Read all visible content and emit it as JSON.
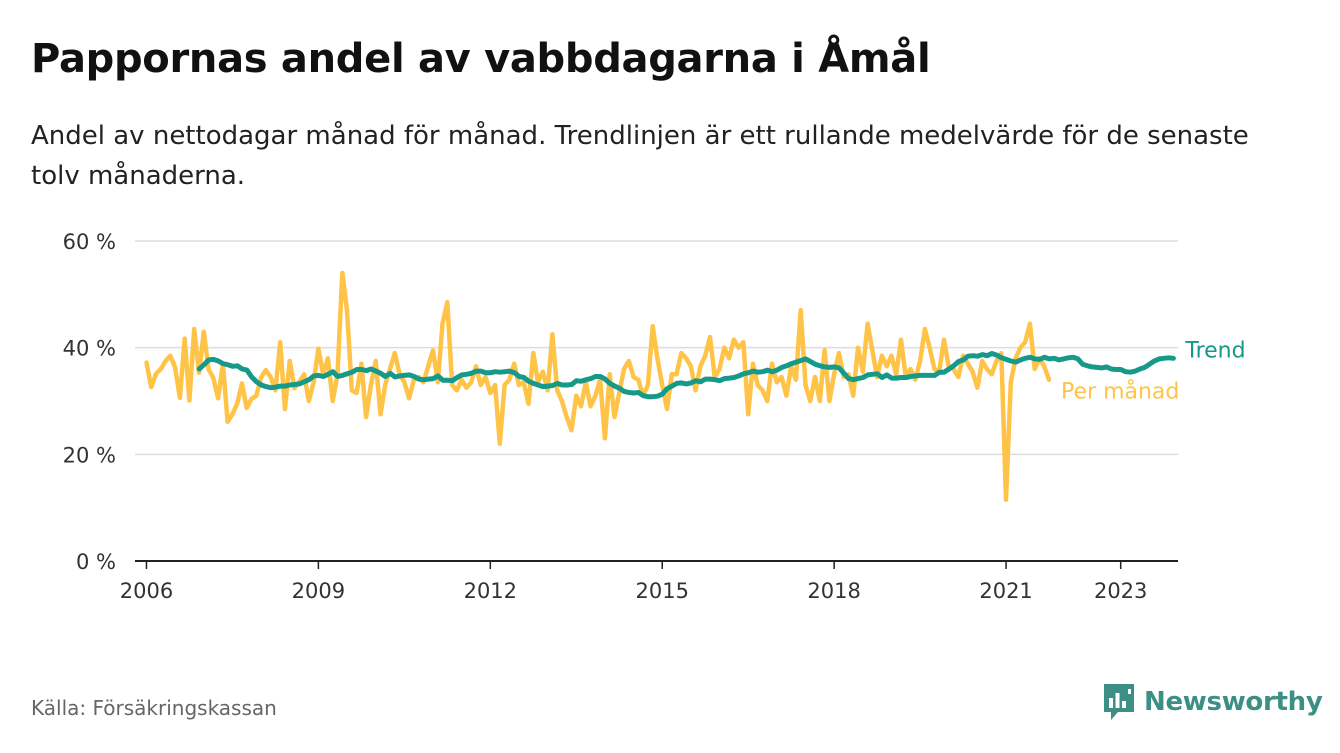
{
  "header": {
    "title": "Pappornas andel av vabbdagarna i Åmål",
    "subtitle": "Andel av nettodagar månad för månad. Trendlinjen är ett rullande medelvärde för de senaste tolv månaderna."
  },
  "footer": {
    "source": "Källa: Försäkringskassan",
    "brand": "Newsworthy",
    "brand_icon": "bar-chart-speech-bubble-icon"
  },
  "chart_data": {
    "type": "line",
    "title": "Pappornas andel av vabbdagarna i Åmål",
    "xlabel": "",
    "ylabel": "",
    "xlim": [
      2005.8,
      2024.0
    ],
    "ylim": [
      0,
      60
    ],
    "y_unit": "%",
    "y_ticks": [
      0,
      20,
      40,
      60
    ],
    "y_tick_labels": [
      "0 %",
      "20 %",
      "40 %",
      "60 %"
    ],
    "x_ticks": [
      2006,
      2009,
      2012,
      2015,
      2018,
      2021,
      2023
    ],
    "x_tick_labels": [
      "2006",
      "2009",
      "2012",
      "2015",
      "2018",
      "2021",
      "2023"
    ],
    "grid": true,
    "legend": "direct labels at right end of lines",
    "x_start": 2006.0,
    "x_step": 0.08333,
    "series": [
      {
        "name": "Per månad",
        "color": "#ffc347",
        "values": [
          37.2,
          32.6,
          35.1,
          36.0,
          37.5,
          38.5,
          36.3,
          30.6,
          41.7,
          30.1,
          43.5,
          35.3,
          43.0,
          36.0,
          34.3,
          30.5,
          37.0,
          26.1,
          27.5,
          29.5,
          33.3,
          28.7,
          30.4,
          31.0,
          34.4,
          35.8,
          34.5,
          32.0,
          41.0,
          28.5,
          37.5,
          32.4,
          33.6,
          35.0,
          30.0,
          33.5,
          39.8,
          35.0,
          38.0,
          30.0,
          35.0,
          54.0,
          47.0,
          32.0,
          31.5,
          37.0,
          27.0,
          33.0,
          37.5,
          27.5,
          33.0,
          36.0,
          39.0,
          35.0,
          33.5,
          30.5,
          34.0,
          34.5,
          33.5,
          36.5,
          39.5,
          33.5,
          44.5,
          48.5,
          33.0,
          32.0,
          34.0,
          32.5,
          33.5,
          36.5,
          33.0,
          34.5,
          31.5,
          33.0,
          22.0,
          33.0,
          34.0,
          37.0,
          33.0,
          33.5,
          29.5,
          39.0,
          33.5,
          35.5,
          32.0,
          42.5,
          32.0,
          30.0,
          27.0,
          24.5,
          31.0,
          29.0,
          33.5,
          29.0,
          31.0,
          34.0,
          23.0,
          35.0,
          27.0,
          31.5,
          36.0,
          37.5,
          34.5,
          34.0,
          31.0,
          33.0,
          44.0,
          38.0,
          33.0,
          28.5,
          35.0,
          35.0,
          39.0,
          38.0,
          36.5,
          32.0,
          36.5,
          38.5,
          42.0,
          34.5,
          36.0,
          40.0,
          38.0,
          41.5,
          40.0,
          41.0,
          27.5,
          37.0,
          33.0,
          32.0,
          30.0,
          37.0,
          33.5,
          34.5,
          31.0,
          36.5,
          34.0,
          47.0,
          33.0,
          30.0,
          34.5,
          30.0,
          39.5,
          30.0,
          35.0,
          39.0,
          34.5,
          35.0,
          31.0,
          40.0,
          35.5,
          44.5,
          39.5,
          34.5,
          38.5,
          36.5,
          38.5,
          35.0,
          41.5,
          34.5,
          36.0,
          34.0,
          37.5,
          43.5,
          40.0,
          36.0,
          35.5,
          41.5,
          36.5,
          36.0,
          34.5,
          38.5,
          37.0,
          35.5,
          32.5,
          37.5,
          36.0,
          35.0,
          37.5,
          39.0,
          11.5,
          33.5,
          38.0,
          40.0,
          41.0,
          44.5,
          36.0,
          38.0,
          36.5,
          34.0
        ]
      },
      {
        "name": "Trend",
        "color": "#17998a",
        "x_start": 2006.92,
        "values": [
          36.0,
          36.8,
          37.7,
          37.8,
          37.5,
          37.0,
          36.8,
          36.5,
          36.6,
          36.0,
          35.8,
          34.5,
          33.6,
          33.0,
          32.7,
          32.5,
          32.6,
          32.8,
          32.8,
          33.0,
          33.1,
          33.2,
          33.6,
          34.0,
          34.7,
          34.8,
          34.6,
          35.0,
          35.5,
          34.6,
          34.8,
          35.1,
          35.4,
          35.9,
          35.9,
          35.7,
          36.0,
          35.6,
          35.2,
          34.6,
          35.2,
          34.5,
          34.7,
          34.8,
          34.9,
          34.6,
          34.1,
          34.0,
          34.1,
          34.2,
          34.7,
          33.9,
          33.9,
          33.8,
          34.4,
          34.9,
          35.0,
          35.2,
          35.6,
          35.6,
          35.3,
          35.3,
          35.5,
          35.4,
          35.5,
          35.6,
          35.3,
          34.6,
          34.4,
          33.7,
          33.3,
          33.0,
          32.7,
          32.8,
          32.9,
          33.3,
          33.0,
          33.0,
          33.1,
          33.8,
          33.7,
          34.0,
          34.2,
          34.6,
          34.6,
          34.1,
          33.3,
          32.8,
          32.4,
          31.8,
          31.6,
          31.5,
          31.6,
          31.0,
          30.8,
          30.8,
          30.9,
          31.3,
          32.3,
          32.8,
          33.3,
          33.4,
          33.2,
          33.4,
          33.8,
          33.6,
          34.1,
          34.1,
          34.0,
          33.8,
          34.2,
          34.3,
          34.4,
          34.7,
          35.1,
          35.3,
          35.6,
          35.4,
          35.5,
          35.8,
          35.5,
          35.8,
          36.3,
          36.6,
          37.0,
          37.3,
          37.6,
          37.9,
          37.4,
          36.9,
          36.6,
          36.4,
          36.3,
          36.4,
          36.2,
          35.2,
          34.2,
          34.0,
          34.2,
          34.4,
          34.9,
          35.0,
          35.1,
          34.4,
          34.9,
          34.3,
          34.3,
          34.4,
          34.4,
          34.6,
          34.7,
          34.8,
          34.8,
          34.8,
          34.8,
          35.4,
          35.4,
          36.0,
          36.6,
          37.4,
          37.7,
          38.4,
          38.5,
          38.4,
          38.7,
          38.5,
          38.9,
          38.6,
          38.1,
          37.8,
          37.5,
          37.3,
          37.7,
          38.0,
          38.2,
          37.9,
          37.8,
          38.2,
          37.9,
          38.0,
          37.7,
          37.9,
          38.1,
          38.2,
          37.9,
          36.9,
          36.6,
          36.4,
          36.3,
          36.2,
          36.4,
          36.0,
          35.9,
          35.9,
          35.5,
          35.4,
          35.6,
          36.0,
          36.3,
          36.9,
          37.5,
          37.9,
          38.0,
          38.1,
          38.0
        ]
      }
    ]
  }
}
